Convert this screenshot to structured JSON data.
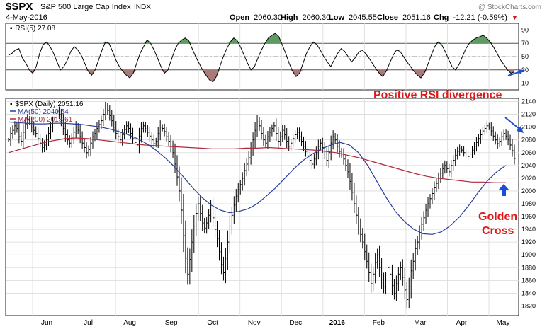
{
  "header": {
    "symbol": "$SPX",
    "name": "S&P 500 Large Cap Index",
    "exchange": "INDX",
    "date": "4-May-2016",
    "watermark": "@ StockCharts.com",
    "open_label": "Open",
    "open": "2060.30",
    "high_label": "High",
    "high": "2060.30",
    "low_label": "Low",
    "low": "2045.55",
    "close_label": "Close",
    "close": "2051.16",
    "chg_label": "Chg",
    "chg": "-12.21 (-0.59%)",
    "chg_arrow": "▼"
  },
  "colors": {
    "price": "#000000",
    "ma50": "#2a3c96",
    "ma200": "#b0283c",
    "rsi_up_fill": "#5e9a62",
    "rsi_down_fill": "#a87a78",
    "annotation_red": "#e01818",
    "annotation_arrow": "#1a4fd6",
    "grid": "#d9d9d9"
  },
  "annotations": {
    "rsi_divergence": "Positive RSI divergence",
    "golden_1": "Golden",
    "golden_2": "Cross"
  },
  "chart_data": {
    "type": "line",
    "rsi_panel": {
      "legend": "RSI(5) 27.08",
      "ylim": [
        0,
        100
      ],
      "yticks": [
        10,
        30,
        50,
        70,
        90
      ],
      "reference_lines": [
        30,
        70
      ],
      "values": [
        52,
        55,
        60,
        62,
        48,
        40,
        30,
        25,
        35,
        55,
        68,
        72,
        65,
        55,
        42,
        30,
        35,
        45,
        58,
        65,
        60,
        52,
        40,
        28,
        22,
        30,
        45,
        60,
        72,
        70,
        58,
        45,
        35,
        28,
        22,
        18,
        25,
        40,
        55,
        65,
        75,
        70,
        60,
        48,
        35,
        25,
        30,
        45,
        60,
        70,
        75,
        78,
        74,
        62,
        50,
        40,
        30,
        22,
        15,
        12,
        20,
        35,
        50,
        62,
        72,
        78,
        74,
        64,
        52,
        40,
        30,
        35,
        48,
        60,
        70,
        78,
        82,
        85,
        80,
        68,
        55,
        40,
        28,
        20,
        25,
        40,
        55,
        65,
        72,
        68,
        60,
        50,
        42,
        35,
        45,
        55,
        62,
        58,
        50,
        42,
        48,
        56,
        60,
        55,
        48,
        40,
        32,
        25,
        20,
        28,
        40,
        52,
        60,
        58,
        50,
        42,
        35,
        28,
        22,
        18,
        25,
        38,
        52,
        65,
        72,
        68,
        58,
        46,
        35,
        30,
        38,
        50,
        62,
        70,
        75,
        78,
        80,
        82,
        78,
        72,
        64,
        55,
        45,
        38,
        30,
        25,
        27
      ]
    },
    "price_panel": {
      "legend": "$SPX (Daily) 2051.16",
      "ma50_legend": "MA(50) 2040.54",
      "ma200_legend": "MA(200) 2013.61",
      "ylim": [
        1805,
        2145
      ],
      "yticks": [
        1820,
        1840,
        1860,
        1880,
        1900,
        1920,
        1940,
        1960,
        1980,
        2000,
        2020,
        2040,
        2060,
        2080,
        2100,
        2120,
        2140
      ],
      "x_labels": [
        "Jun",
        "Jul",
        "Aug",
        "Sep",
        "Oct",
        "Nov",
        "Dec",
        "2016",
        "Feb",
        "Mar",
        "Apr",
        "May"
      ],
      "close": [
        2080,
        2090,
        2095,
        2102,
        2098,
        2085,
        2078,
        2092,
        2105,
        2112,
        2108,
        2100,
        2095,
        2090,
        2082,
        2075,
        2068,
        2072,
        2080,
        2090,
        2100,
        2108,
        2115,
        2125,
        2120,
        2110,
        2098,
        2088,
        2080,
        2075,
        2083,
        2092,
        2100,
        2095,
        2085,
        2075,
        2068,
        2060,
        2065,
        2075,
        2085,
        2090,
        2098,
        2104,
        2110,
        2120,
        2130,
        2126,
        2118,
        2110,
        2100,
        2090,
        2085,
        2080,
        2088,
        2096,
        2102,
        2098,
        2090,
        2082,
        2076,
        2072,
        2086,
        2098,
        2102,
        2097,
        2092,
        2086,
        2080,
        2074,
        2078,
        2090,
        2100,
        2098,
        2093,
        2085,
        2078,
        2070,
        2060,
        2042,
        2022,
        2000,
        1970,
        1930,
        1895,
        1870,
        1893,
        1920,
        1945,
        1965,
        1980,
        1965,
        1950,
        1942,
        1950,
        1962,
        1975,
        1958,
        1940,
        1925,
        1905,
        1885,
        1872,
        1895,
        1920,
        1945,
        1962,
        1978,
        1992,
        2002,
        2010,
        2020,
        2032,
        2042,
        2052,
        2066,
        2080,
        2095,
        2108,
        2102,
        2090,
        2080,
        2075,
        2085,
        2092,
        2098,
        2102,
        2090,
        2078,
        2085,
        2095,
        2088,
        2078,
        2070,
        2075,
        2082,
        2088,
        2092,
        2085,
        2078,
        2070,
        2062,
        2055,
        2048,
        2042,
        2050,
        2060,
        2070,
        2075,
        2068,
        2058,
        2048,
        2060,
        2075,
        2085,
        2080,
        2070,
        2062,
        2058,
        2050,
        2040,
        2030,
        2015,
        1998,
        1980,
        1962,
        1945,
        1932,
        1920,
        1905,
        1890,
        1872,
        1855,
        1870,
        1888,
        1900,
        1880,
        1862,
        1850,
        1862,
        1880,
        1870,
        1852,
        1840,
        1855,
        1870,
        1880,
        1865,
        1845,
        1830,
        1850,
        1875,
        1890,
        1910,
        1920,
        1935,
        1948,
        1958,
        1970,
        1980,
        1988,
        1996,
        2005,
        2012,
        2020,
        2028,
        2035,
        2040,
        2035,
        2030,
        2040,
        2048,
        2056,
        2062,
        2066,
        2064,
        2060,
        2058,
        2054,
        2058,
        2064,
        2070,
        2076,
        2082,
        2088,
        2094,
        2098,
        2102,
        2100,
        2094,
        2086,
        2080,
        2074,
        2078,
        2085,
        2090,
        2086,
        2080,
        2072,
        2063,
        2051
      ],
      "ma50": [
        2108,
        2107,
        2106,
        2105,
        2105,
        2106,
        2106,
        2105,
        2104,
        2102,
        2100,
        2097,
        2093,
        2088,
        2082,
        2074,
        2064,
        2052,
        2038,
        2022,
        2005,
        1990,
        1978,
        1970,
        1966,
        1968,
        1972,
        1980,
        1992,
        2005,
        2020,
        2035,
        2048,
        2058,
        2066,
        2072,
        2076,
        2072,
        2060,
        2040,
        2015,
        1990,
        1968,
        1952,
        1940,
        1933,
        1932,
        1936,
        1946,
        1960,
        1978,
        1998,
        2016,
        2030,
        2040
      ],
      "ma200": [
        2060,
        2065,
        2070,
        2075,
        2079,
        2082,
        2083,
        2082,
        2080,
        2078,
        2076,
        2074,
        2072,
        2071,
        2070,
        2069,
        2068,
        2067,
        2066,
        2066,
        2066,
        2067,
        2067,
        2068,
        2067,
        2066,
        2065,
        2064,
        2062,
        2060,
        2056,
        2052,
        2047,
        2042,
        2037,
        2032,
        2027,
        2023,
        2020,
        2018,
        2016,
        2014,
        2014,
        2013,
        2013
      ]
    }
  }
}
